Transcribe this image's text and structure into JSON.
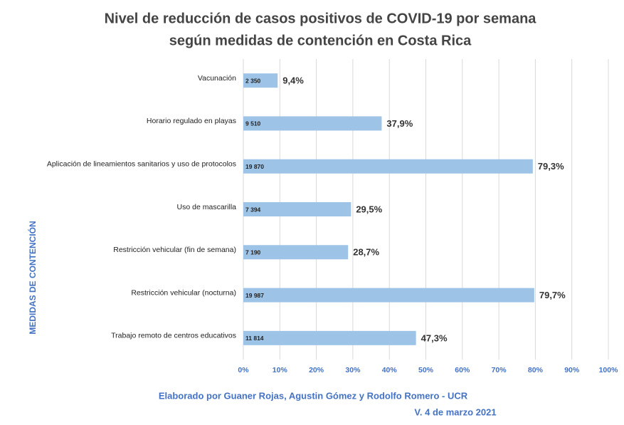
{
  "chart_data": {
    "type": "barh",
    "title": [
      "Nivel de reducción de casos positivos de COVID-19 por semana",
      "según medidas de contención en Costa Rica"
    ],
    "ylabel": "MEDIDAS DE CONTENCIÓN",
    "footer": [
      "Elaborado por Guaner Rojas, Agustin Gómez y Rodolfo Romero - UCR",
      "V. 4 de marzo 2021"
    ],
    "categories": [
      "Vacunación",
      "Horario regulado en playas",
      "Aplicación de lineamientos sanitarios y uso de protocolos",
      "Uso de mascarilla",
      "Restricción vehicular (fin de semana)",
      "Restricción vehicular (nocturna)",
      "Trabajo remoto de centros educativos"
    ],
    "values": [
      9.4,
      37.9,
      79.3,
      29.5,
      28.7,
      79.7,
      47.3
    ],
    "value_labels": [
      "9,4%",
      "37,9%",
      "79,3%",
      "29,5%",
      "28,7%",
      "79,7%",
      "47,3%"
    ],
    "bar_labels": [
      "2 350",
      "9 510",
      "19 870",
      "7 394",
      "7 190",
      "19 987",
      "11 814"
    ],
    "color": "#9dc3e6",
    "xlim": [
      0,
      100
    ],
    "xticks": [
      {
        "value": 0,
        "label": "0%"
      },
      {
        "value": 10,
        "label": "10%"
      },
      {
        "value": 20,
        "label": "20%"
      },
      {
        "value": 30,
        "label": "30%"
      },
      {
        "value": 40,
        "label": "40%"
      },
      {
        "value": 50,
        "label": "50%"
      },
      {
        "value": 60,
        "label": "60%"
      },
      {
        "value": 70,
        "label": "70%"
      },
      {
        "value": 80,
        "label": "80%"
      },
      {
        "value": 90,
        "label": "90%"
      },
      {
        "value": 100,
        "label": "100%"
      }
    ],
    "grid": true
  }
}
